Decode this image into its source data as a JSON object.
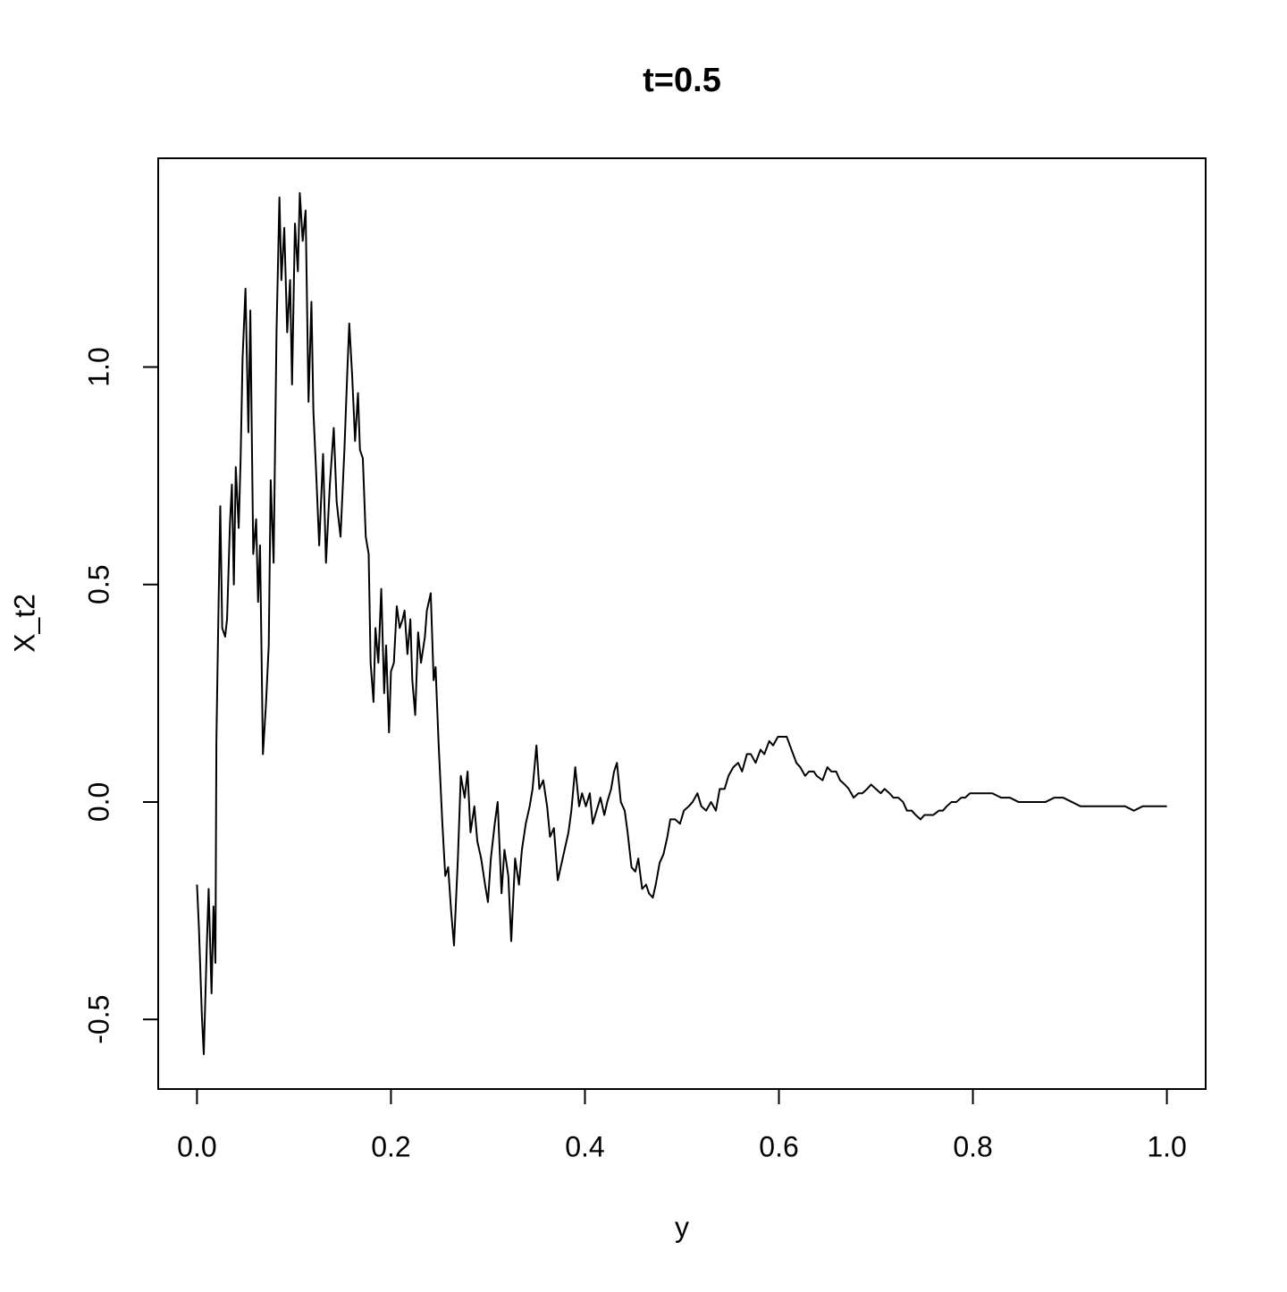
{
  "chart_data": {
    "type": "line",
    "title": "t=0.5",
    "x_label": "y",
    "y_label": "X_t2",
    "x": [
      0,
      0.002,
      0.005,
      0.007,
      0.01,
      0.012,
      0.015,
      0.017,
      0.019,
      0.02,
      0.022,
      0.024,
      0.026,
      0.029,
      0.031,
      0.034,
      0.036,
      0.038,
      0.04,
      0.043,
      0.045,
      0.047,
      0.05,
      0.053,
      0.055,
      0.058,
      0.061,
      0.063,
      0.065,
      0.068,
      0.071,
      0.074,
      0.076,
      0.079,
      0.082,
      0.085,
      0.087,
      0.09,
      0.093,
      0.096,
      0.098,
      0.101,
      0.104,
      0.106,
      0.109,
      0.112,
      0.115,
      0.118,
      0.12,
      0.123,
      0.126,
      0.13,
      0.133,
      0.137,
      0.141,
      0.144,
      0.148,
      0.152,
      0.155,
      0.157,
      0.16,
      0.163,
      0.166,
      0.168,
      0.171,
      0.174,
      0.177,
      0.179,
      0.182,
      0.184,
      0.187,
      0.19,
      0.193,
      0.195,
      0.198,
      0.2,
      0.203,
      0.206,
      0.209,
      0.212,
      0.214,
      0.217,
      0.22,
      0.222,
      0.225,
      0.228,
      0.231,
      0.235,
      0.237,
      0.241,
      0.244,
      0.246,
      0.249,
      0.253,
      0.256,
      0.259,
      0.262,
      0.265,
      0.269,
      0.272,
      0.276,
      0.279,
      0.282,
      0.286,
      0.289,
      0.293,
      0.297,
      0.3,
      0.303,
      0.307,
      0.31,
      0.314,
      0.317,
      0.321,
      0.324,
      0.328,
      0.332,
      0.335,
      0.339,
      0.343,
      0.346,
      0.35,
      0.353,
      0.357,
      0.361,
      0.364,
      0.368,
      0.372,
      0.375,
      0.379,
      0.383,
      0.386,
      0.39,
      0.394,
      0.397,
      0.401,
      0.405,
      0.408,
      0.412,
      0.416,
      0.42,
      0.423,
      0.427,
      0.43,
      0.433,
      0.437,
      0.441,
      0.444,
      0.448,
      0.452,
      0.455,
      0.459,
      0.463,
      0.466,
      0.47,
      0.473,
      0.477,
      0.481,
      0.485,
      0.488,
      0.493,
      0.498,
      0.502,
      0.507,
      0.511,
      0.516,
      0.52,
      0.525,
      0.53,
      0.535,
      0.539,
      0.544,
      0.548,
      0.553,
      0.558,
      0.562,
      0.567,
      0.571,
      0.576,
      0.581,
      0.585,
      0.59,
      0.594,
      0.599,
      0.604,
      0.608,
      0.613,
      0.618,
      0.622,
      0.627,
      0.631,
      0.636,
      0.639,
      0.645,
      0.65,
      0.654,
      0.659,
      0.663,
      0.668,
      0.672,
      0.677,
      0.682,
      0.686,
      0.691,
      0.695,
      0.7,
      0.705,
      0.709,
      0.714,
      0.718,
      0.723,
      0.728,
      0.732,
      0.737,
      0.741,
      0.746,
      0.75,
      0.755,
      0.759,
      0.765,
      0.769,
      0.773,
      0.778,
      0.783,
      0.788,
      0.792,
      0.797,
      0.801,
      0.806,
      0.81,
      0.82,
      0.829,
      0.838,
      0.847,
      0.857,
      0.866,
      0.875,
      0.884,
      0.888,
      0.893,
      0.902,
      0.911,
      0.92,
      0.929,
      0.939,
      0.948,
      0.957,
      0.966,
      0.975,
      0.985,
      0.994,
      1.0
    ],
    "series": [
      {
        "name": "X_t2",
        "color": "#000000",
        "values": [
          -0.19,
          -0.29,
          -0.49,
          -0.58,
          -0.34,
          -0.2,
          -0.44,
          -0.24,
          -0.37,
          0.14,
          0.42,
          0.68,
          0.4,
          0.38,
          0.42,
          0.64,
          0.73,
          0.5,
          0.77,
          0.63,
          0.79,
          1.02,
          1.18,
          0.85,
          1.13,
          0.57,
          0.65,
          0.46,
          0.59,
          0.11,
          0.22,
          0.36,
          0.74,
          0.55,
          1.08,
          1.39,
          1.2,
          1.32,
          1.08,
          1.2,
          0.96,
          1.33,
          1.22,
          1.4,
          1.29,
          1.36,
          0.92,
          1.15,
          0.9,
          0.75,
          0.59,
          0.8,
          0.55,
          0.73,
          0.86,
          0.69,
          0.61,
          0.81,
          0.99,
          1.1,
          0.98,
          0.83,
          0.94,
          0.81,
          0.79,
          0.61,
          0.57,
          0.32,
          0.23,
          0.4,
          0.32,
          0.49,
          0.25,
          0.36,
          0.16,
          0.3,
          0.32,
          0.45,
          0.4,
          0.42,
          0.44,
          0.34,
          0.42,
          0.28,
          0.2,
          0.39,
          0.32,
          0.38,
          0.44,
          0.48,
          0.28,
          0.31,
          0.14,
          -0.05,
          -0.17,
          -0.15,
          -0.25,
          -0.33,
          -0.13,
          0.06,
          0.01,
          0.07,
          -0.07,
          -0.01,
          -0.09,
          -0.13,
          -0.19,
          -0.23,
          -0.13,
          -0.05,
          0.0,
          -0.21,
          -0.11,
          -0.17,
          -0.32,
          -0.13,
          -0.19,
          -0.11,
          -0.05,
          -0.01,
          0.03,
          0.13,
          0.03,
          0.05,
          -0.01,
          -0.08,
          -0.06,
          -0.18,
          -0.15,
          -0.11,
          -0.07,
          -0.02,
          0.08,
          -0.01,
          0.02,
          -0.01,
          0.02,
          -0.05,
          -0.02,
          0.01,
          -0.03,
          0.0,
          0.03,
          0.07,
          0.09,
          0.0,
          -0.02,
          -0.07,
          -0.15,
          -0.16,
          -0.13,
          -0.2,
          -0.19,
          -0.21,
          -0.22,
          -0.19,
          -0.14,
          -0.12,
          -0.08,
          -0.04,
          -0.04,
          -0.05,
          -0.02,
          -0.01,
          0.0,
          0.02,
          -0.01,
          -0.02,
          0.0,
          -0.02,
          0.03,
          0.03,
          0.06,
          0.08,
          0.09,
          0.07,
          0.11,
          0.11,
          0.09,
          0.12,
          0.11,
          0.14,
          0.13,
          0.15,
          0.15,
          0.15,
          0.12,
          0.09,
          0.08,
          0.06,
          0.07,
          0.07,
          0.06,
          0.05,
          0.08,
          0.07,
          0.07,
          0.05,
          0.04,
          0.03,
          0.01,
          0.02,
          0.02,
          0.03,
          0.04,
          0.03,
          0.02,
          0.03,
          0.02,
          0.01,
          0.01,
          0.0,
          -0.02,
          -0.02,
          -0.03,
          -0.04,
          -0.03,
          -0.03,
          -0.03,
          -0.02,
          -0.02,
          -0.01,
          0.0,
          0.0,
          0.01,
          0.01,
          0.02,
          0.02,
          0.02,
          0.02,
          0.02,
          0.01,
          0.01,
          0.0,
          0.0,
          0.0,
          0.0,
          0.01,
          0.01,
          0.01,
          0.0,
          -0.01,
          -0.01,
          -0.01,
          -0.01,
          -0.01,
          -0.01,
          -0.02,
          -0.01,
          -0.01,
          -0.01,
          -0.01
        ]
      }
    ],
    "xlim": [
      -0.04,
      1.04
    ],
    "ylim": [
      -0.66,
      1.48
    ],
    "xticks": [
      {
        "value": 0,
        "label": "0.0"
      },
      0.2,
      0.4,
      0.6,
      0.8,
      {
        "value": 1,
        "label": "1.0"
      }
    ],
    "yticks": [
      -0.5,
      {
        "value": 0,
        "label": "0.0"
      },
      0.5,
      {
        "value": 1,
        "label": "1.0"
      }
    ],
    "grid": false
  }
}
